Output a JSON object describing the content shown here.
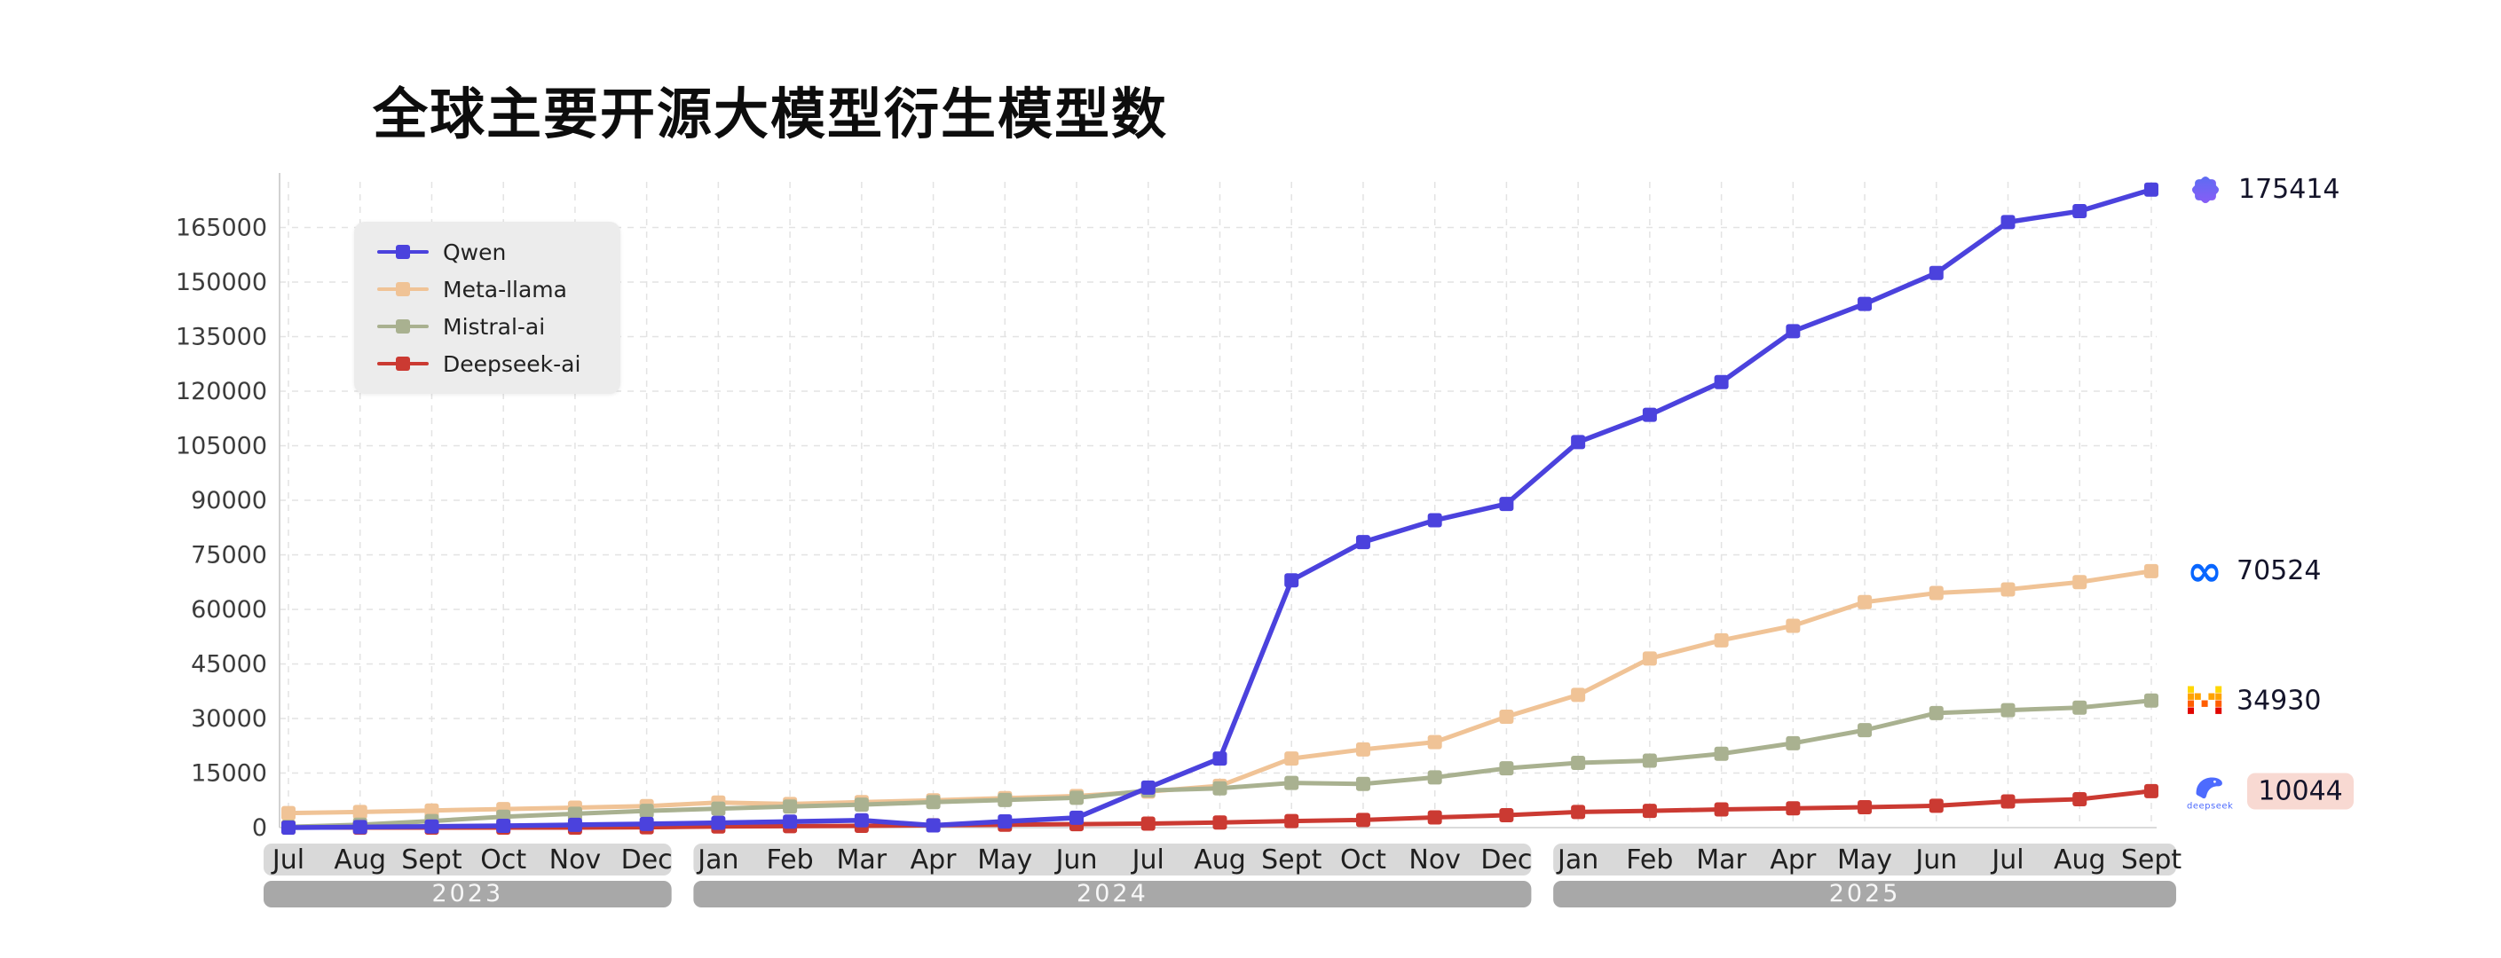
{
  "chart_data": {
    "type": "line",
    "title": "全球主要开源大模型衍生模型数",
    "legend_position": "top-left",
    "grid": "dashed",
    "ylim": [
      0,
      177000
    ],
    "yticks": [
      0,
      15000,
      30000,
      45000,
      60000,
      75000,
      90000,
      105000,
      120000,
      135000,
      150000,
      165000
    ],
    "x_groups": [
      {
        "year": "2023",
        "months": [
          "Jul",
          "Aug",
          "Sept",
          "Oct",
          "Nov",
          "Dec"
        ]
      },
      {
        "year": "2024",
        "months": [
          "Jan",
          "Feb",
          "Mar",
          "Apr",
          "May",
          "Jun",
          "Jul",
          "Aug",
          "Sept",
          "Oct",
          "Nov",
          "Dec"
        ]
      },
      {
        "year": "2025",
        "months": [
          "Jan",
          "Feb",
          "Mar",
          "Apr",
          "May",
          "Jun",
          "Jul",
          "Aug",
          "Sept"
        ]
      }
    ],
    "series": [
      {
        "name": "Qwen",
        "color": "#4b42dd",
        "marker": "square",
        "icon": "qwen-logo",
        "end_label": "175414",
        "values": [
          0,
          150,
          300,
          500,
          750,
          1000,
          1300,
          1650,
          2000,
          600,
          1700,
          2700,
          11000,
          19000,
          68000,
          78500,
          84500,
          89000,
          106000,
          113500,
          122500,
          136500,
          144000,
          152500,
          166500,
          169500,
          175414
        ]
      },
      {
        "name": "Meta-llama",
        "color": "#f0c396",
        "marker": "square",
        "icon": "meta-logo",
        "end_label": "70524",
        "values": [
          4000,
          4300,
          4700,
          5100,
          5500,
          5900,
          6900,
          6500,
          7000,
          7500,
          8100,
          8700,
          9900,
          11500,
          19000,
          21500,
          23500,
          30500,
          36500,
          46500,
          51500,
          55500,
          62000,
          64500,
          65500,
          67500,
          70524
        ]
      },
      {
        "name": "Mistral-ai",
        "color": "#a9b190",
        "marker": "square",
        "icon": "mistral-logo",
        "end_label": "34930",
        "values": [
          200,
          800,
          1800,
          3000,
          3800,
          4600,
          5200,
          5800,
          6300,
          7000,
          7600,
          8200,
          10200,
          10800,
          12300,
          12000,
          13800,
          16300,
          17800,
          18400,
          20300,
          23200,
          26800,
          31500,
          32300,
          33000,
          34930
        ]
      },
      {
        "name": "Deepseek-ai",
        "color": "#cb3a32",
        "marker": "square",
        "icon": "deepseek-logo",
        "icon_caption": "deepseek",
        "end_label": "10044",
        "label_bg": "#f8d9d2",
        "values": [
          0,
          0,
          0,
          0,
          0,
          100,
          300,
          400,
          500,
          650,
          800,
          950,
          1100,
          1400,
          1800,
          2100,
          2800,
          3400,
          4300,
          4600,
          5000,
          5300,
          5600,
          6000,
          7200,
          7800,
          10044
        ]
      }
    ],
    "band_colors": {
      "month_band": "#d9d9d9",
      "year_band": "#a8a8a8"
    }
  }
}
